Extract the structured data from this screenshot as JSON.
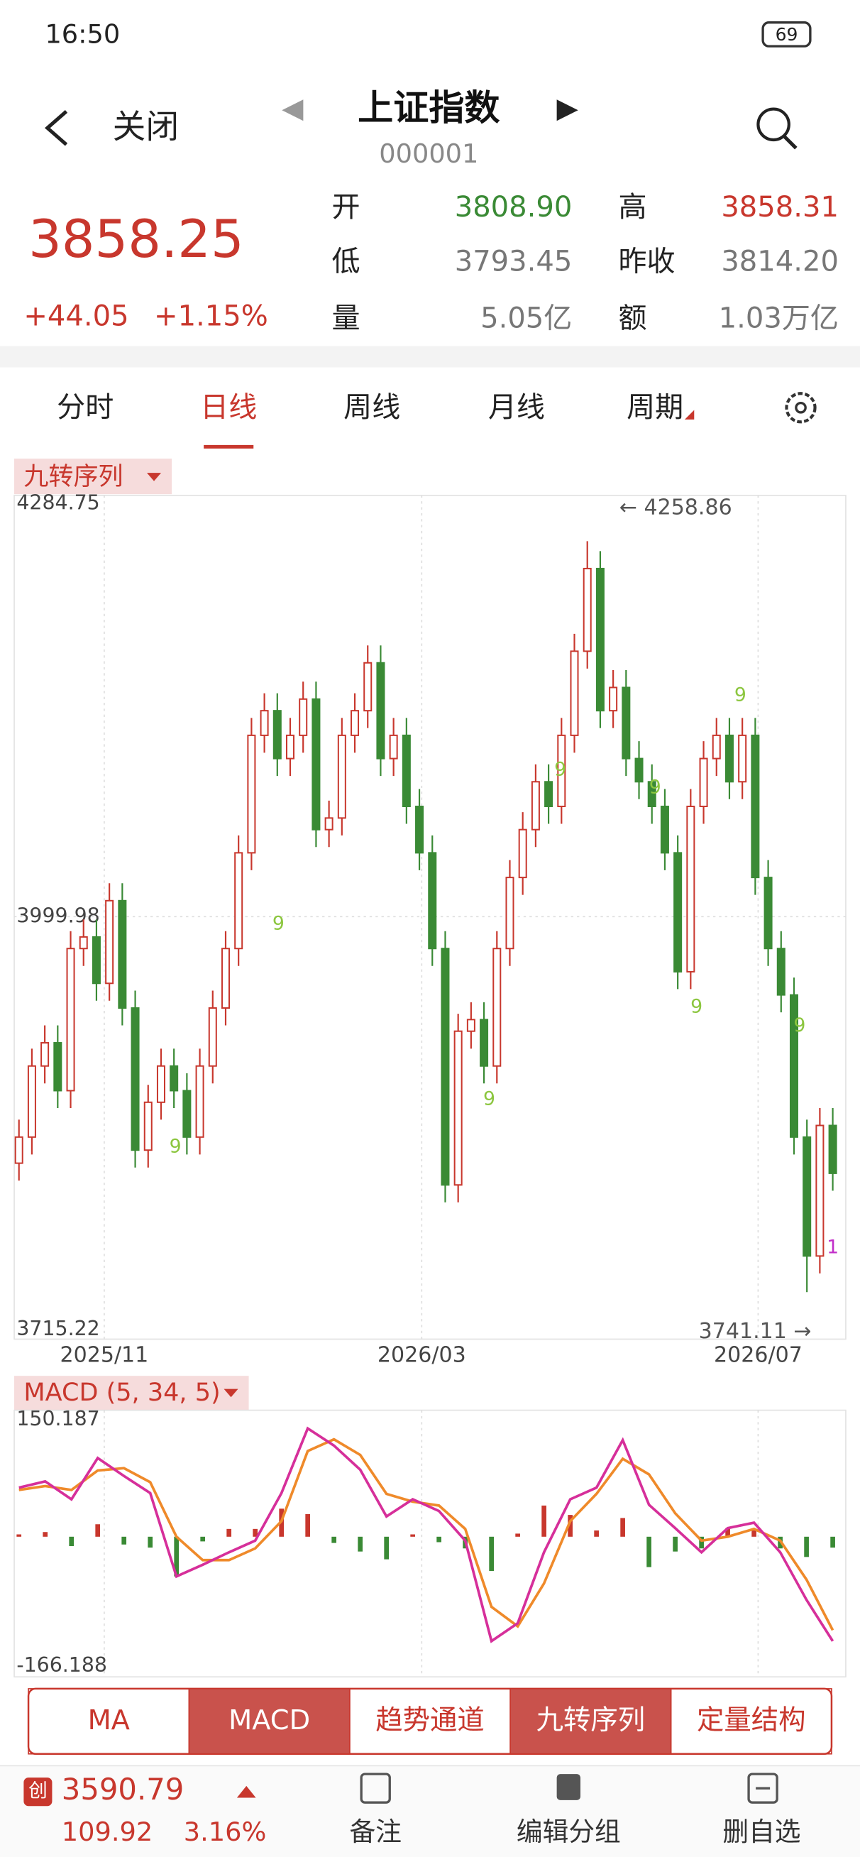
{
  "status_bar": {
    "time": "16:50",
    "battery": "69"
  },
  "header": {
    "back": "关闭",
    "title": "上证指数",
    "code": "000001"
  },
  "quote": {
    "price": "3858.25",
    "change": "+44.05",
    "change_pct": "+1.15%",
    "fields": [
      {
        "label": "开",
        "value": "3808.90"
      },
      {
        "label": "高",
        "value": "3858.31"
      },
      {
        "label": "低",
        "value": "3793.45"
      },
      {
        "label": "昨收",
        "value": "3814.20"
      },
      {
        "label": "量",
        "value": "5.05亿"
      },
      {
        "label": "额",
        "value": "1.03万亿"
      }
    ]
  },
  "tabs": [
    "分时",
    "日线",
    "周线",
    "月线",
    "周期"
  ],
  "kline": {
    "indicator": "九转序列",
    "ylim": [
      3715.22,
      4284.75
    ],
    "yticks": [
      4284.75,
      3999.98,
      3715.22
    ],
    "x_labels": [
      "2025/11",
      "2026/03",
      "2026/07"
    ],
    "high_label": "← 4258.86",
    "low_label": "3741.11 →",
    "up_color": "#c8372d",
    "down_color": "#3a8a35",
    "nine_marks": [
      "9",
      "9",
      "9",
      "9",
      "9",
      "9",
      "9",
      "9",
      "1"
    ],
    "candles": [
      [
        3830,
        3860,
        3818,
        3848
      ],
      [
        3848,
        3909,
        3836,
        3897
      ],
      [
        3897,
        3925,
        3885,
        3913
      ],
      [
        3913,
        3925,
        3868,
        3880
      ],
      [
        3880,
        3990,
        3868,
        3978
      ],
      [
        3978,
        3998,
        3966,
        3986
      ],
      [
        3986,
        3998,
        3942,
        3954
      ],
      [
        3954,
        4023,
        3942,
        4011
      ],
      [
        4011,
        4023,
        3925,
        3937
      ],
      [
        3937,
        3949,
        3827,
        3839
      ],
      [
        3839,
        3884,
        3827,
        3872
      ],
      [
        3872,
        3909,
        3860,
        3897
      ],
      [
        3897,
        3909,
        3868,
        3880
      ],
      [
        3880,
        3892,
        3836,
        3848
      ],
      [
        3848,
        3909,
        3836,
        3897
      ],
      [
        3897,
        3949,
        3885,
        3937
      ],
      [
        3937,
        3990,
        3925,
        3978
      ],
      [
        3978,
        4056,
        3966,
        4044
      ],
      [
        4044,
        4137,
        4032,
        4125
      ],
      [
        4125,
        4154,
        4113,
        4142
      ],
      [
        4142,
        4154,
        4097,
        4109
      ],
      [
        4109,
        4137,
        4097,
        4125
      ],
      [
        4125,
        4162,
        4113,
        4150
      ],
      [
        4150,
        4162,
        4048,
        4060
      ],
      [
        4060,
        4080,
        4048,
        4068
      ],
      [
        4068,
        4137,
        4056,
        4125
      ],
      [
        4125,
        4154,
        4113,
        4142
      ],
      [
        4142,
        4187,
        4130,
        4175
      ],
      [
        4175,
        4187,
        4097,
        4109
      ],
      [
        4109,
        4137,
        4097,
        4125
      ],
      [
        4125,
        4137,
        4064,
        4076
      ],
      [
        4076,
        4088,
        4032,
        4044
      ],
      [
        4044,
        4056,
        3966,
        3978
      ],
      [
        3978,
        3990,
        3803,
        3815
      ],
      [
        3815,
        3933,
        3803,
        3921
      ],
      [
        3921,
        3941,
        3909,
        3929
      ],
      [
        3929,
        3941,
        3885,
        3897
      ],
      [
        3897,
        3990,
        3885,
        3978
      ],
      [
        3978,
        4039,
        3966,
        4027
      ],
      [
        4027,
        4072,
        4015,
        4060
      ],
      [
        4060,
        4105,
        4048,
        4093
      ],
      [
        4093,
        4105,
        4064,
        4076
      ],
      [
        4076,
        4137,
        4064,
        4125
      ],
      [
        4125,
        4195,
        4113,
        4183
      ],
      [
        4183,
        4258.86,
        4171,
        4240
      ],
      [
        4240,
        4252,
        4130,
        4142
      ],
      [
        4142,
        4170,
        4130,
        4158
      ],
      [
        4158,
        4170,
        4097,
        4109
      ],
      [
        4109,
        4121,
        4081,
        4093
      ],
      [
        4093,
        4105,
        4064,
        4076
      ],
      [
        4076,
        4088,
        4032,
        4044
      ],
      [
        4044,
        4056,
        3950,
        3962
      ],
      [
        3962,
        4088,
        3950,
        4076
      ],
      [
        4076,
        4121,
        4064,
        4109
      ],
      [
        4109,
        4137,
        4097,
        4125
      ],
      [
        4125,
        4137,
        4081,
        4093
      ],
      [
        4093,
        4137,
        4081,
        4125
      ],
      [
        4125,
        4137,
        4015,
        4027
      ],
      [
        4027,
        4039,
        3966,
        3978
      ],
      [
        3978,
        3990,
        3934,
        3946
      ],
      [
        3946,
        3958,
        3836,
        3848
      ],
      [
        3848,
        3860,
        3741.11,
        3766
      ],
      [
        3766,
        3868,
        3754,
        3856
      ],
      [
        3856,
        3868,
        3811,
        3823
      ]
    ]
  },
  "macd": {
    "label": "MACD (5, 34, 5)",
    "ylim": [
      -166.188,
      150.187
    ],
    "yticks": [
      150.187,
      -166.188
    ],
    "dif": {
      "color": "#d62f9a",
      "values": [
        63,
        71,
        48,
        101,
        78,
        56,
        -51,
        -36,
        -20,
        -5,
        56,
        139,
        117,
        86,
        26,
        48,
        33,
        -5,
        -134,
        -111,
        -20,
        48,
        63,
        124,
        41,
        11,
        -20,
        11,
        18,
        -20,
        -81,
        -134
      ]
    },
    "dea": {
      "color": "#ef8a2a",
      "values": [
        60,
        65,
        60,
        85,
        88,
        70,
        0,
        -30,
        -30,
        -15,
        20,
        110,
        125,
        105,
        55,
        45,
        40,
        10,
        -90,
        -115,
        -60,
        20,
        55,
        100,
        80,
        30,
        -5,
        0,
        10,
        -5,
        -55,
        -120
      ]
    },
    "hist": [
      3,
      6,
      -12,
      16,
      -10,
      -14,
      -51,
      -6,
      10,
      10,
      36,
      29,
      -8,
      -19,
      -29,
      3,
      -7,
      -15,
      -44,
      4,
      40,
      28,
      8,
      24,
      -39,
      -19,
      -15,
      11,
      8,
      -15,
      -26,
      -14
    ]
  },
  "indicator_buttons": [
    "MA",
    "MACD",
    "趋势通道",
    "九转序列",
    "定量结构"
  ],
  "bottom_bar": {
    "icon": "创",
    "price": "3590.79",
    "change": "109.92",
    "change_pct": "3.16%",
    "actions": [
      "备注",
      "编辑分组",
      "删自选"
    ]
  }
}
